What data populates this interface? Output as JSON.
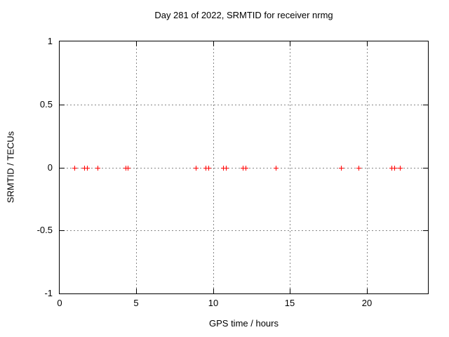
{
  "page": {
    "background_color": "#ffffff",
    "text_color": "#000000",
    "border_color": "#000000"
  },
  "chart_data": {
    "type": "scatter",
    "title": "Day 281 of 2022, SRMTID for receiver nrmg",
    "xlabel": "GPS time / hours",
    "ylabel": "SRMTID / TECUs",
    "xlim": [
      0,
      24
    ],
    "ylim": [
      -1,
      1
    ],
    "xticks": {
      "values": [
        0,
        5,
        10,
        15,
        20
      ],
      "labels": [
        "0",
        "5",
        "10",
        "15",
        "20"
      ]
    },
    "yticks": {
      "values": [
        1,
        0.5,
        0,
        -0.5,
        -1
      ],
      "labels": [
        "1",
        "0.5",
        "0",
        "-0.5",
        "-1"
      ]
    },
    "grid": {
      "x_values": [
        5,
        10,
        15,
        20
      ],
      "y_values": [
        0.5,
        0,
        -0.5
      ],
      "color": "#878787",
      "style": "dashed"
    },
    "legend": "none",
    "series": [
      {
        "name": "SRMTID",
        "marker": "plus",
        "color": "#ff0000",
        "x": [
          0.96,
          1.61,
          1.79,
          2.46,
          4.3,
          4.45,
          8.86,
          9.52,
          9.7,
          10.64,
          10.83,
          11.95,
          12.13,
          14.08,
          18.34,
          19.48,
          21.64,
          21.82,
          22.17
        ],
        "y": [
          0,
          0,
          0,
          0,
          0,
          0,
          0,
          0,
          0,
          0,
          0,
          0,
          0,
          0,
          0,
          0,
          0,
          0,
          0
        ]
      }
    ]
  }
}
